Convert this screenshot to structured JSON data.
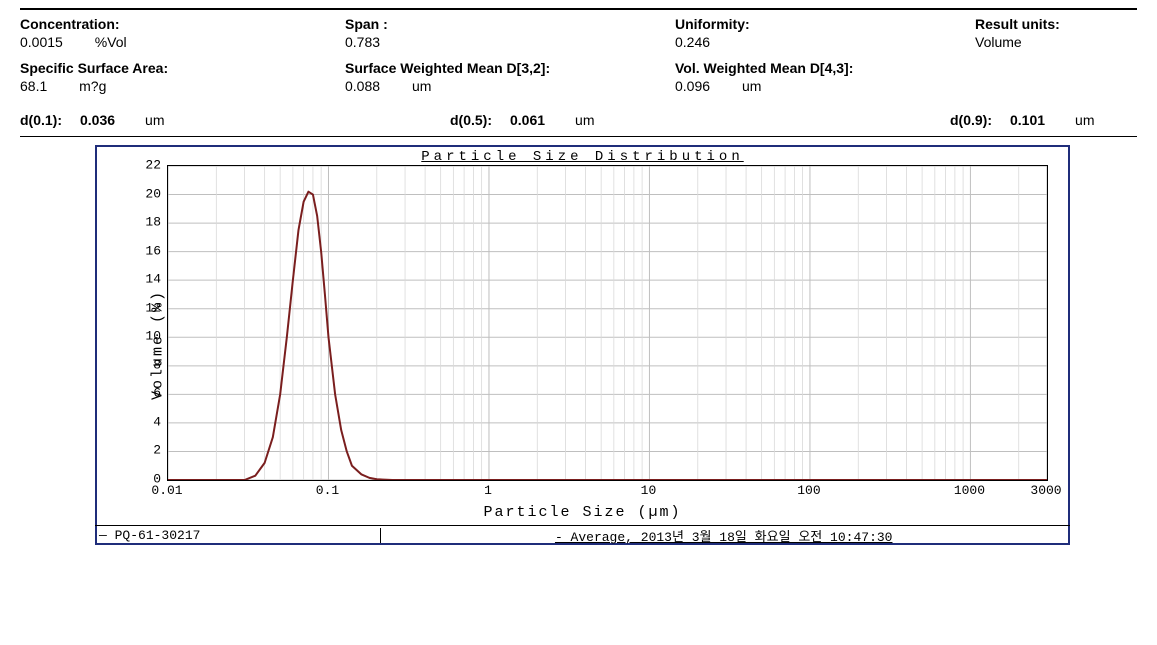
{
  "header": {
    "col1": [
      {
        "label": "Concentration:",
        "value": "0.0015",
        "unit": "%Vol"
      },
      {
        "label": "Specific Surface Area:",
        "value": "68.1",
        "unit": "m?g"
      }
    ],
    "col2": [
      {
        "label": "Span :",
        "value": "0.783",
        "unit": ""
      },
      {
        "label": "Surface Weighted Mean D[3,2]:",
        "value": "0.088",
        "unit": "um"
      }
    ],
    "col3": [
      {
        "label": "Uniformity:",
        "value": "0.246",
        "unit": ""
      },
      {
        "label": "Vol. Weighted Mean D[4,3]:",
        "value": "0.096",
        "unit": "um"
      }
    ],
    "col4": [
      {
        "label": "Result units:",
        "value": "Volume",
        "unit": ""
      }
    ]
  },
  "d_values": {
    "d01": {
      "label": "d(0.1):",
      "value": "0.036",
      "unit": "um"
    },
    "d05": {
      "label": "d(0.5):",
      "value": "0.061",
      "unit": "um"
    },
    "d09": {
      "label": "d(0.9):",
      "value": "0.101",
      "unit": "um"
    }
  },
  "chart": {
    "type": "line",
    "title": "Particle Size Distribution",
    "xlabel": "Particle Size (µm)",
    "ylabel": "Volume (%)",
    "x_scale": "log",
    "x_min": 0.01,
    "x_max": 3000,
    "x_ticks": [
      0.01,
      0.1,
      1,
      10,
      100,
      1000,
      3000
    ],
    "x_tick_labels": [
      "0.01",
      "0.1",
      "1",
      "10",
      "100",
      "1000",
      "3000"
    ],
    "y_min": 0,
    "y_max": 22,
    "y_ticks": [
      0,
      2,
      4,
      6,
      8,
      10,
      12,
      14,
      16,
      18,
      20,
      22
    ],
    "grid_color": "#bfbfbf",
    "minor_grid_color": "#d9d9d9",
    "curve_color": "#7a1e1e",
    "curve_width": 2,
    "background_color": "#ffffff",
    "series": {
      "x": [
        0.01,
        0.02,
        0.03,
        0.035,
        0.04,
        0.045,
        0.05,
        0.055,
        0.06,
        0.065,
        0.07,
        0.075,
        0.08,
        0.085,
        0.09,
        0.095,
        0.1,
        0.11,
        0.12,
        0.13,
        0.14,
        0.16,
        0.18,
        0.2,
        0.25,
        0.3,
        0.5,
        1,
        10,
        100,
        1000,
        3000
      ],
      "y": [
        0,
        0,
        0.0,
        0.3,
        1.2,
        3.0,
        6.0,
        10.0,
        14.0,
        17.5,
        19.5,
        20.2,
        20.0,
        18.5,
        16.0,
        13.0,
        10.0,
        6.0,
        3.5,
        2.0,
        1.0,
        0.4,
        0.15,
        0.05,
        0,
        0,
        0,
        0,
        0,
        0,
        0,
        0
      ]
    },
    "legend_left": "PQ-61-30217",
    "legend_right": "- Average, 2013년 3월 18일 화요일 오전 10:47:30"
  }
}
